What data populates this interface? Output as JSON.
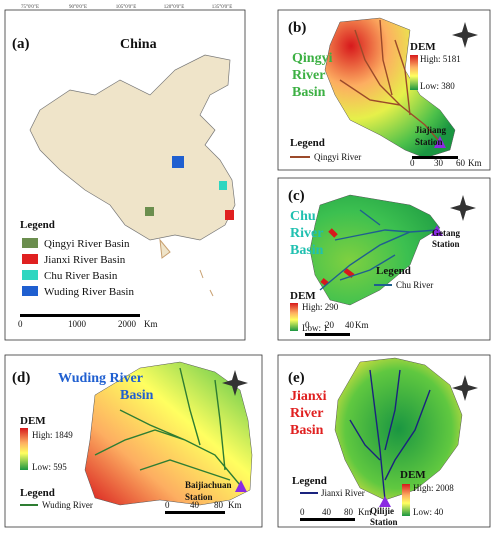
{
  "panel_a": {
    "label": "(a)",
    "title": "China",
    "legend": {
      "title": "Legend",
      "items": [
        "Qingyi River Basin",
        "Jianxi River Basin",
        "Chu River Basin",
        "Wuding River Basin"
      ]
    },
    "scale": [
      "0",
      "1000",
      "2000",
      "Km"
    ],
    "lon_ticks": [
      "75°0'0\"E",
      "90°0'0\"E",
      "105°0'0\"E",
      "120°0'0\"E",
      "135°0'0\"E"
    ]
  },
  "panel_b": {
    "label": "(b)",
    "title": [
      "Qingyi",
      "River",
      "Basin"
    ],
    "dem": {
      "title": "DEM",
      "high": "High: 5181",
      "low": "Low: 380"
    },
    "station": [
      "Jiajiang",
      "Station"
    ],
    "legend": {
      "title": "Legend",
      "items": [
        "Qingyi River"
      ]
    },
    "scale": [
      "0",
      "30",
      "60",
      "Km"
    ]
  },
  "panel_c": {
    "label": "(c)",
    "title": [
      "Chu",
      "River",
      "Basin"
    ],
    "station": [
      "Getang",
      "Station"
    ],
    "legend": {
      "title": "Legend",
      "items": [
        "Chu River"
      ]
    },
    "dem": {
      "title": "DEM",
      "high": "High: 290",
      "low": "Low: 1"
    },
    "scale": [
      "0",
      "20",
      "40",
      "Km"
    ]
  },
  "panel_d": {
    "label": "(d)",
    "title": [
      "Wuding River",
      "Basin"
    ],
    "dem": {
      "title": "DEM",
      "high": "High: 1849",
      "low": "Low: 595"
    },
    "legend": {
      "title": "Legend",
      "items": [
        "Wuding River"
      ]
    },
    "station": [
      "Baijiachuan",
      "Station"
    ],
    "scale": [
      "0",
      "40",
      "80",
      "Km"
    ]
  },
  "panel_e": {
    "label": "(e)",
    "title": [
      "Jianxi",
      "River",
      "Basin"
    ],
    "legend": {
      "title": "Legend",
      "items": [
        "Jianxi River"
      ]
    },
    "dem": {
      "title": "DEM",
      "high": "High: 2008",
      "low": "Low: 40"
    },
    "station": [
      "Qilijie",
      "Station"
    ],
    "scale": [
      "0",
      "40",
      "80",
      "Km"
    ]
  }
}
